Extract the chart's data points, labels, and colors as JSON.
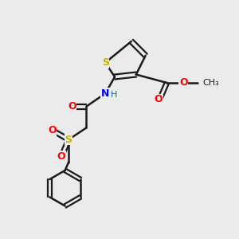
{
  "background_color": "#ebebeb",
  "bond_color": "#1a1a1a",
  "atom_colors": {
    "S": "#c8b400",
    "O": "#ff0000",
    "N": "#0000ff",
    "H_on_N": "#008080",
    "C_methoxy": "#ff0000"
  },
  "figsize": [
    3.0,
    3.0
  ],
  "dpi": 100
}
